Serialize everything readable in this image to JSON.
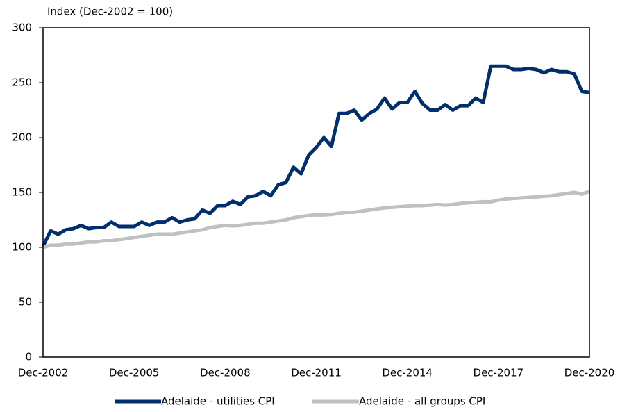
{
  "chart_data": {
    "type": "line",
    "axis_title": "Index (Dec-2002 = 100)",
    "categories": [
      "Dec-2002",
      null,
      null,
      null,
      null,
      null,
      null,
      null,
      null,
      null,
      null,
      null,
      "Dec-2005",
      null,
      null,
      null,
      null,
      null,
      null,
      null,
      null,
      null,
      null,
      null,
      "Dec-2008",
      null,
      null,
      null,
      null,
      null,
      null,
      null,
      null,
      null,
      null,
      null,
      "Dec-2011",
      null,
      null,
      null,
      null,
      null,
      null,
      null,
      null,
      null,
      null,
      null,
      "Dec-2014",
      null,
      null,
      null,
      null,
      null,
      null,
      null,
      null,
      null,
      null,
      null,
      "Dec-2017",
      null,
      null,
      null,
      null,
      null,
      null,
      null,
      null,
      null,
      null,
      null,
      "Dec-2020"
    ],
    "series": [
      {
        "name": "Adelaide - utilities CPI",
        "color": "#002f6c",
        "values": [
          101,
          115,
          112,
          116,
          117,
          120,
          117,
          118,
          118,
          123,
          119,
          119,
          119,
          123,
          120,
          123,
          123,
          127,
          123,
          125,
          126,
          134,
          131,
          138,
          138,
          142,
          139,
          146,
          147,
          151,
          147,
          157,
          159,
          173,
          167,
          184,
          191,
          200,
          192,
          222,
          222,
          225,
          216,
          222,
          226,
          236,
          226,
          232,
          232,
          242,
          231,
          225,
          225,
          230,
          225,
          229,
          229,
          236,
          232,
          265,
          265,
          265,
          262,
          262,
          263,
          262,
          259,
          262,
          260,
          260,
          258,
          242,
          241
        ]
      },
      {
        "name": "Adelaide - all groups CPI",
        "color": "#c0c0c0",
        "values": [
          100,
          102,
          102,
          103,
          103,
          104,
          105,
          105,
          106,
          106,
          107,
          108,
          109,
          110,
          111,
          112,
          112,
          112,
          113,
          114,
          115,
          116,
          118,
          119,
          120,
          119.5,
          120,
          121,
          122,
          122,
          123,
          124,
          125,
          127,
          128,
          129,
          129.5,
          129.5,
          130,
          131,
          132,
          132,
          133,
          134,
          135,
          136,
          136.5,
          137,
          137.5,
          138,
          138,
          138.5,
          139,
          138.5,
          139,
          140,
          140.5,
          141,
          141.5,
          141.5,
          143,
          144,
          144.5,
          145,
          145.5,
          146,
          146.5,
          147,
          148,
          149,
          150,
          148.5,
          151
        ]
      }
    ],
    "ylim": [
      0,
      300
    ],
    "yticks": [
      0,
      50,
      100,
      150,
      200,
      250,
      300
    ],
    "grid": false,
    "legend": "bottom"
  }
}
